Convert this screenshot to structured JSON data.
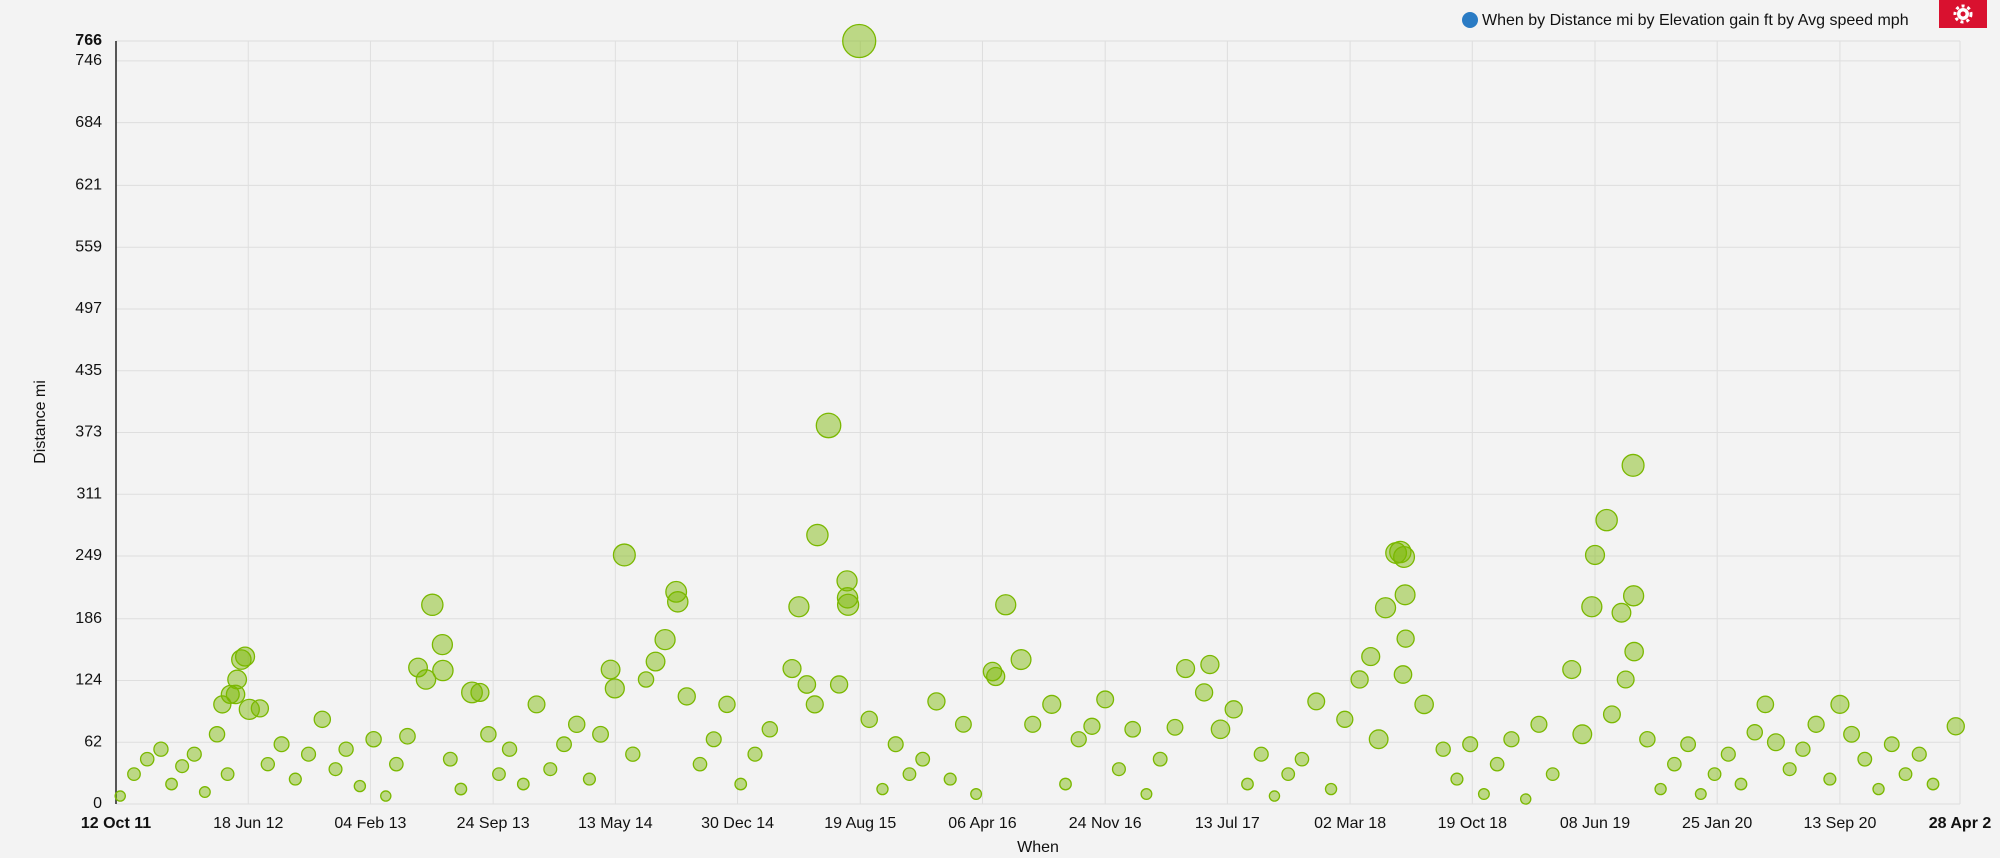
{
  "chart_data": {
    "type": "scatter",
    "y_label": "Distance mi",
    "x_label": "When",
    "xlim": [
      "2011-10-12",
      "2021-04-28"
    ],
    "xticks": [
      {
        "value": "2011-10-12",
        "label": "12 Oct 11"
      },
      {
        "value": "2012-06-18",
        "label": "18 Jun 12"
      },
      {
        "value": "2013-02-04",
        "label": "04 Feb 13"
      },
      {
        "value": "2013-09-24",
        "label": "24 Sep 13"
      },
      {
        "value": "2014-05-13",
        "label": "13 May 14"
      },
      {
        "value": "2014-12-30",
        "label": "30 Dec 14"
      },
      {
        "value": "2015-08-19",
        "label": "19 Aug 15"
      },
      {
        "value": "2016-04-06",
        "label": "06 Apr 16"
      },
      {
        "value": "2016-11-24",
        "label": "24 Nov 16"
      },
      {
        "value": "2017-07-13",
        "label": "13 Jul 17"
      },
      {
        "value": "2018-03-02",
        "label": "02 Mar 18"
      },
      {
        "value": "2018-10-19",
        "label": "19 Oct 18"
      },
      {
        "value": "2019-06-08",
        "label": "08 Jun 19"
      },
      {
        "value": "2020-01-25",
        "label": "25 Jan 20"
      },
      {
        "value": "2020-09-13",
        "label": "13 Sep 20"
      },
      {
        "value": "2021-04-28",
        "label": "28 Apr 2"
      }
    ],
    "ylim": [
      0,
      766
    ],
    "yticks": [
      0,
      62,
      124,
      186,
      249,
      311,
      373,
      435,
      497,
      559,
      621,
      684,
      746,
      766
    ],
    "grid": true,
    "legend": "top-right",
    "series": [
      {
        "name": "When by Distance mi by Elevation gain ft by Avg speed mph",
        "color": "#7ab800",
        "x": [
          "2011-10-20",
          "2011-11-15",
          "2011-12-10",
          "2012-01-05",
          "2012-01-25",
          "2012-02-14",
          "2012-03-08",
          "2012-03-28",
          "2012-04-20",
          "2012-05-10",
          "2012-04-30",
          "2012-05-15",
          "2012-05-28",
          "2012-06-05",
          "2012-06-12",
          "2012-06-20",
          "2012-07-10",
          "2012-05-25",
          "2012-07-25",
          "2012-08-20",
          "2012-09-15",
          "2012-10-10",
          "2012-11-05",
          "2012-11-30",
          "2012-12-20",
          "2013-01-15",
          "2013-02-10",
          "2013-03-05",
          "2013-03-25",
          "2013-04-15",
          "2013-05-05",
          "2013-05-20",
          "2013-06-01",
          "2013-06-20",
          "2013-06-21",
          "2013-07-05",
          "2013-07-25",
          "2013-08-15",
          "2013-08-30",
          "2013-09-15",
          "2013-10-05",
          "2013-10-25",
          "2013-11-20",
          "2013-12-15",
          "2014-01-10",
          "2014-02-05",
          "2014-03-01",
          "2014-03-25",
          "2014-04-15",
          "2014-05-04",
          "2014-05-12",
          "2014-05-30",
          "2014-06-15",
          "2014-07-10",
          "2014-07-28",
          "2014-08-15",
          "2014-09-05",
          "2014-09-08",
          "2014-09-25",
          "2014-10-20",
          "2014-11-15",
          "2014-12-10",
          "2015-01-05",
          "2015-02-01",
          "2015-03-01",
          "2015-04-12",
          "2015-04-25",
          "2015-05-10",
          "2015-05-25",
          "2015-05-30",
          "2015-06-20",
          "2015-07-10",
          "2015-07-25",
          "2015-07-26",
          "2015-07-27",
          "2015-08-17",
          "2015-09-05",
          "2015-09-30",
          "2015-10-25",
          "2015-11-20",
          "2015-12-15",
          "2016-01-10",
          "2016-02-05",
          "2016-03-01",
          "2016-03-25",
          "2016-04-25",
          "2016-05-01",
          "2016-05-20",
          "2016-06-18",
          "2016-07-10",
          "2016-08-15",
          "2016-09-10",
          "2016-10-05",
          "2016-10-30",
          "2016-11-24",
          "2016-12-20",
          "2017-01-15",
          "2017-02-10",
          "2017-03-08",
          "2017-04-05",
          "2017-04-25",
          "2017-05-30",
          "2017-06-10",
          "2017-06-30",
          "2017-07-25",
          "2017-08-20",
          "2017-09-15",
          "2017-10-10",
          "2017-11-05",
          "2017-12-01",
          "2017-12-28",
          "2018-01-25",
          "2018-02-20",
          "2018-03-20",
          "2018-04-10",
          "2018-04-25",
          "2018-05-08",
          "2018-05-28",
          "2018-06-05",
          "2018-06-12",
          "2018-06-14",
          "2018-06-10",
          "2018-06-15",
          "2018-07-20",
          "2018-08-25",
          "2018-09-20",
          "2018-10-15",
          "2018-11-10",
          "2018-12-05",
          "2019-01-01",
          "2019-01-28",
          "2019-02-22",
          "2019-03-20",
          "2019-04-25",
          "2019-05-15",
          "2019-06-02",
          "2019-06-08",
          "2019-06-30",
          "2019-07-10",
          "2019-07-28",
          "2019-08-05",
          "2019-08-19",
          "2019-08-20",
          "2019-08-21",
          "2019-09-15",
          "2019-10-10",
          "2019-11-05",
          "2019-12-01",
          "2019-12-25",
          "2020-01-20",
          "2020-02-15",
          "2020-03-10",
          "2020-04-05",
          "2020-04-25",
          "2020-05-15",
          "2020-06-10",
          "2020-07-05",
          "2020-07-30",
          "2020-08-25",
          "2020-09-13",
          "2020-10-05",
          "2020-10-30",
          "2020-11-25",
          "2020-12-20",
          "2021-01-15",
          "2021-02-10",
          "2021-03-08",
          "2021-04-20"
        ],
        "values": [
          8,
          30,
          45,
          55,
          20,
          38,
          50,
          12,
          70,
          30,
          100,
          110,
          125,
          145,
          148,
          95,
          96,
          110,
          40,
          60,
          25,
          50,
          85,
          35,
          55,
          18,
          65,
          8,
          40,
          68,
          137,
          125,
          200,
          160,
          134,
          45,
          15,
          112,
          112,
          70,
          30,
          55,
          20,
          100,
          35,
          60,
          80,
          25,
          70,
          135,
          116,
          250,
          50,
          125,
          143,
          165,
          213,
          203,
          108,
          40,
          65,
          100,
          20,
          50,
          75,
          136,
          198,
          120,
          100,
          270,
          380,
          120,
          224,
          207,
          200,
          766,
          85,
          15,
          60,
          30,
          45,
          103,
          25,
          80,
          10,
          133,
          128,
          200,
          145,
          80,
          100,
          20,
          65,
          78,
          105,
          35,
          75,
          10,
          45,
          77,
          136,
          112,
          140,
          75,
          95,
          20,
          50,
          8,
          30,
          45,
          103,
          15,
          85,
          125,
          148,
          65,
          197,
          252,
          253,
          248,
          210,
          130,
          166,
          100,
          55,
          25,
          60,
          10,
          40,
          65,
          5,
          80,
          30,
          135,
          70,
          198,
          250,
          285,
          90,
          192,
          125,
          340,
          209,
          153,
          65,
          15,
          40,
          60,
          10,
          30,
          50,
          20,
          72,
          100,
          62,
          35,
          55,
          80,
          25,
          100,
          70,
          45,
          15,
          60,
          30,
          50,
          20,
          78
        ],
        "sizes": [
          300,
          900,
          1200,
          1500,
          600,
          1000,
          1400,
          400,
          2000,
          900,
          3000,
          3500,
          4000,
          4500,
          4200,
          5000,
          3000,
          3800,
          1100,
          1800,
          700,
          1400,
          2500,
          1000,
          1500,
          500,
          2000,
          300,
          1200,
          2100,
          4000,
          4500,
          6000,
          5000,
          5200,
          1300,
          600,
          5500,
          3500,
          2000,
          900,
          1500,
          600,
          2800,
          1000,
          1700,
          2500,
          700,
          2200,
          4000,
          4200,
          6500,
          1500,
          2000,
          4000,
          5000,
          5500,
          5200,
          3000,
          1200,
          1800,
          2500,
          600,
          1400,
          2000,
          3500,
          5000,
          3200,
          2900,
          6000,
          9000,
          3000,
          5000,
          5200,
          5800,
          20000,
          2500,
          500,
          1800,
          900,
          1300,
          3000,
          700,
          2200,
          400,
          3800,
          3600,
          5000,
          4800,
          2300,
          3500,
          600,
          1900,
          2400,
          2800,
          1000,
          2100,
          400,
          1300,
          2200,
          3500,
          3000,
          3600,
          3800,
          3000,
          600,
          1400,
          300,
          900,
          1200,
          2800,
          500,
          2400,
          3000,
          3500,
          4000,
          5000,
          5500,
          6000,
          5600,
          4800,
          3200,
          3000,
          3800,
          1500,
          700,
          1800,
          400,
          1200,
          1900,
          300,
          2300,
          900,
          3500,
          4000,
          5000,
          4200,
          6000,
          2800,
          4000,
          2800,
          6500,
          5000,
          3800,
          2000,
          500,
          1200,
          1700,
          400,
          900,
          1400,
          600,
          2000,
          2600,
          2800,
          1000,
          1500,
          2400,
          700,
          3500,
          2200,
          1300,
          500,
          1700,
          900,
          1400,
          600,
          3000
        ]
      }
    ]
  }
}
